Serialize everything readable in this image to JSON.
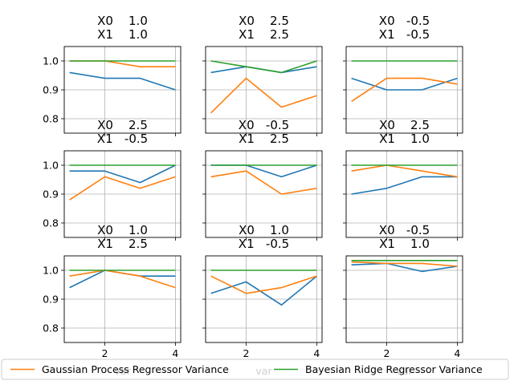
{
  "chart_data": {
    "type": "line",
    "layout": {
      "rows": 3,
      "cols": 3
    },
    "x": [
      1,
      2,
      3,
      4
    ],
    "xlim": [
      0.85,
      4.15
    ],
    "ylim": [
      0.75,
      1.05
    ],
    "x_ticks": [
      2,
      4
    ],
    "y_ticks": [
      0.8,
      0.9,
      1.0
    ],
    "x_tick_labels": [
      "2",
      "4"
    ],
    "y_tick_labels": [
      "0.8",
      "0.9",
      "1.0"
    ],
    "grid": true,
    "xlabel": "var",
    "legend": {
      "placement": "bottom"
    },
    "series_styles": [
      {
        "key": "blue",
        "color": "#1f77b4"
      },
      {
        "key": "gp",
        "color": "#ff7f0e",
        "name": "Gaussian Process Regressor Variance"
      },
      {
        "key": "br",
        "color": "#2ca02c",
        "name": "Bayesian Ridge Regressor Variance"
      }
    ],
    "panels": [
      {
        "title": [
          "X0    1.0",
          "X1    1.0"
        ],
        "blue": [
          0.96,
          0.94,
          0.94,
          0.9
        ],
        "gp": [
          1.0,
          1.0,
          0.98,
          0.98
        ],
        "br": [
          1.0,
          1.0,
          1.0,
          1.0
        ]
      },
      {
        "title": [
          "X0    2.5",
          "X1    2.5"
        ],
        "blue": [
          0.96,
          0.98,
          0.96,
          0.98
        ],
        "gp": [
          0.82,
          0.94,
          0.84,
          0.88
        ],
        "br": [
          1.0,
          0.98,
          0.96,
          1.0
        ]
      },
      {
        "title": [
          "X0   -0.5",
          "X1   -0.5"
        ],
        "blue": [
          0.94,
          0.9,
          0.9,
          0.94
        ],
        "gp": [
          0.86,
          0.94,
          0.94,
          0.92
        ],
        "br": [
          1.0,
          1.0,
          1.0,
          1.0
        ]
      },
      {
        "title": [
          "X0    2.5",
          "X1   -0.5"
        ],
        "blue": [
          0.98,
          0.98,
          0.94,
          1.0
        ],
        "gp": [
          0.88,
          0.96,
          0.92,
          0.96
        ],
        "br": [
          1.0,
          1.0,
          1.0,
          1.0
        ]
      },
      {
        "title": [
          "X0   -0.5",
          "X1    2.5"
        ],
        "blue": [
          1.0,
          1.0,
          0.96,
          1.0
        ],
        "gp": [
          0.96,
          0.98,
          0.9,
          0.92
        ],
        "br": [
          1.0,
          1.0,
          1.0,
          1.0
        ]
      },
      {
        "title": [
          "X0    2.5",
          "X1    1.0"
        ],
        "blue": [
          0.9,
          0.92,
          0.96,
          0.96
        ],
        "gp": [
          0.98,
          1.0,
          0.98,
          0.96
        ],
        "br": [
          1.0,
          1.0,
          1.0,
          1.0
        ]
      },
      {
        "title": [
          "X0    1.0",
          "X1    2.5"
        ],
        "blue": [
          0.94,
          1.0,
          0.98,
          0.98
        ],
        "gp": [
          0.98,
          1.0,
          0.98,
          0.94
        ],
        "br": [
          1.0,
          1.0,
          1.0,
          1.0
        ]
      },
      {
        "title": [
          "X0    1.0",
          "X1   -0.5"
        ],
        "blue": [
          0.92,
          0.96,
          0.88,
          0.98
        ],
        "gp": [
          0.98,
          0.92,
          0.94,
          0.98
        ],
        "br": [
          1.0,
          1.0,
          1.0,
          1.0
        ]
      },
      {
        "title": [
          "X0   -0.5",
          "X1    1.0"
        ],
        "blue": [
          1.019,
          1.024,
          0.996,
          1.014
        ],
        "gp": [
          1.029,
          1.024,
          1.024,
          1.014
        ],
        "br": [
          1.034,
          1.034,
          1.034,
          1.034
        ]
      }
    ]
  }
}
